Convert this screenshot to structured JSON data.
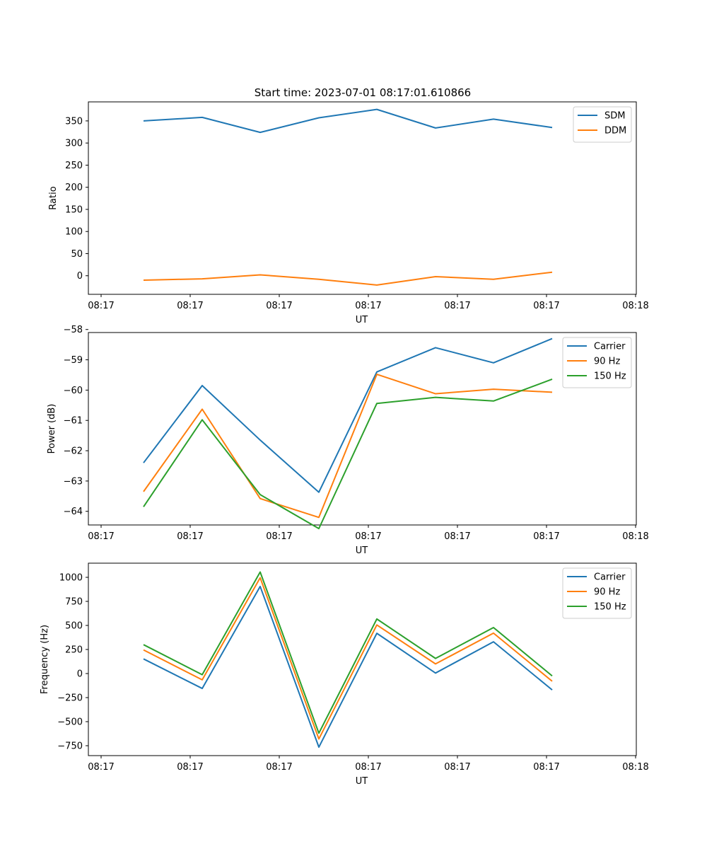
{
  "chart_data": [
    {
      "type": "line",
      "title": "Start time: 2023-07-01 08:17:01.610866",
      "xlabel": "UT",
      "ylabel": "Ratio",
      "x_tick_labels": [
        "08:17",
        "08:17",
        "08:17",
        "08:17",
        "08:17",
        "08:17",
        "08:18"
      ],
      "y_ticks": [
        0,
        50,
        100,
        150,
        200,
        250,
        300,
        350
      ],
      "y_tick_labels": [
        "0",
        "50",
        "100",
        "150",
        "200",
        "250",
        "300",
        "350"
      ],
      "ylim": [
        -42,
        393
      ],
      "legend_position": "top-right",
      "series": [
        {
          "name": "SDM",
          "color": "#1f77b4",
          "values": [
            350,
            358,
            324,
            357,
            376,
            334,
            354,
            335
          ]
        },
        {
          "name": "DDM",
          "color": "#ff7f0e",
          "values": [
            -10,
            -7,
            2,
            -8,
            -21,
            -2,
            -8,
            8
          ]
        }
      ]
    },
    {
      "type": "line",
      "title": "",
      "xlabel": "UT",
      "ylabel": "Power (dB)",
      "x_tick_labels": [
        "08:17",
        "08:17",
        "08:17",
        "08:17",
        "08:17",
        "08:17",
        "08:18"
      ],
      "y_ticks": [
        -64,
        -63,
        -62,
        -61,
        -60,
        -59,
        -58
      ],
      "y_tick_labels": [
        "−64",
        "−63",
        "−62",
        "−61",
        "−60",
        "−59",
        "−58"
      ],
      "ylim": [
        -64.45,
        -58.1
      ],
      "legend_position": "top-right",
      "series": [
        {
          "name": "Carrier",
          "color": "#1f77b4",
          "values": [
            -62.4,
            -59.85,
            -61.65,
            -63.37,
            -59.4,
            -58.6,
            -59.1,
            -58.3
          ]
        },
        {
          "name": "90 Hz",
          "color": "#ff7f0e",
          "values": [
            -63.35,
            -60.63,
            -63.58,
            -64.2,
            -59.48,
            -60.12,
            -59.97,
            -60.07
          ]
        },
        {
          "name": "150 Hz",
          "color": "#2ca02c",
          "values": [
            -63.85,
            -60.98,
            -63.45,
            -64.57,
            -60.44,
            -60.24,
            -60.36,
            -59.64
          ]
        }
      ]
    },
    {
      "type": "line",
      "title": "",
      "xlabel": "UT",
      "ylabel": "Frequency (Hz)",
      "x_tick_labels": [
        "08:17",
        "08:17",
        "08:17",
        "08:17",
        "08:17",
        "08:17",
        "08:18"
      ],
      "y_ticks": [
        -750,
        -500,
        -250,
        0,
        250,
        500,
        750,
        1000
      ],
      "y_tick_labels": [
        "−750",
        "−500",
        "−250",
        "0",
        "250",
        "500",
        "750",
        "1000"
      ],
      "ylim": [
        -853,
        1147
      ],
      "legend_position": "top-right",
      "series": [
        {
          "name": "Carrier",
          "color": "#1f77b4",
          "values": [
            152,
            -155,
            905,
            -765,
            418,
            5,
            330,
            -170
          ]
        },
        {
          "name": "90 Hz",
          "color": "#ff7f0e",
          "values": [
            245,
            -65,
            995,
            -680,
            505,
            100,
            420,
            -80
          ]
        },
        {
          "name": "150 Hz",
          "color": "#2ca02c",
          "values": [
            300,
            -12,
            1055,
            -620,
            567,
            157,
            478,
            -25
          ]
        }
      ]
    }
  ]
}
